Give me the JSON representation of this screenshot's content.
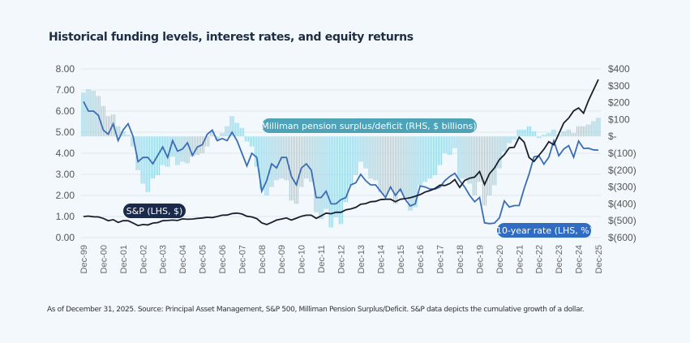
{
  "title": "Historical funding levels, interest rates, and equity returns",
  "footnote": "As of December 31, 2025. Source: Principal Asset Management, S&P 500, Milliman Pension Surplus/Deficit. S&P data depicts the cumulative growth of a dollar.",
  "colors": {
    "background": "#f2f8fb",
    "pension_bars": "#9dd4e4",
    "rate_line": "#3a6db5",
    "sp_line": "#1a1f2e",
    "pension_label": "#4ea3b9",
    "sp_label": "#1b2a4a",
    "rate_label": "#2f6cc2",
    "grid": "#dde8ee"
  },
  "chart_data": {
    "type": "bar+line",
    "title": "Historical funding levels, interest rates, and equity returns",
    "grid": true,
    "left_axis": {
      "ylim": [
        0,
        8
      ],
      "ticks": [
        "0.00",
        "1.00",
        "2.00",
        "3.00",
        "4.00",
        "5.00",
        "6.00",
        "7.00",
        "8.00"
      ]
    },
    "right_axis": {
      "ylim": [
        -600,
        400
      ],
      "ticks": [
        "$(600)",
        "$(500)",
        "$(400)",
        "$(300)",
        "$(200)",
        "$(100)",
        "$-",
        "$100",
        "$200",
        "$300",
        "$400"
      ]
    },
    "x_ticks": [
      "Dec-99",
      "Dec-00",
      "Dec-01",
      "Dec-02",
      "Dec-03",
      "Dec-04",
      "Dec-05",
      "Dec-06",
      "Dec-07",
      "Dec-08",
      "Dec-09",
      "Dec-10",
      "Dec-11",
      "Dec-12",
      "Dec-13",
      "Dec-14",
      "Dec-15",
      "Dec-16",
      "Dec-17",
      "Dec-18",
      "Dec-19",
      "Dec-20",
      "Dec-21",
      "Dec-22",
      "Dec-23",
      "Dec-24",
      "Dec-25"
    ],
    "x": [
      "1999-12",
      "2000-03",
      "2000-06",
      "2000-09",
      "2000-12",
      "2001-03",
      "2001-06",
      "2001-09",
      "2001-12",
      "2002-03",
      "2002-06",
      "2002-09",
      "2002-12",
      "2003-03",
      "2003-06",
      "2003-09",
      "2003-12",
      "2004-03",
      "2004-06",
      "2004-09",
      "2004-12",
      "2005-03",
      "2005-06",
      "2005-09",
      "2005-12",
      "2006-03",
      "2006-06",
      "2006-09",
      "2006-12",
      "2007-03",
      "2007-06",
      "2007-09",
      "2007-12",
      "2008-03",
      "2008-06",
      "2008-09",
      "2008-12",
      "2009-03",
      "2009-06",
      "2009-09",
      "2009-12",
      "2010-03",
      "2010-06",
      "2010-09",
      "2010-12",
      "2011-03",
      "2011-06",
      "2011-09",
      "2011-12",
      "2012-03",
      "2012-06",
      "2012-09",
      "2012-12",
      "2013-03",
      "2013-06",
      "2013-09",
      "2013-12",
      "2014-03",
      "2014-06",
      "2014-09",
      "2014-12",
      "2015-03",
      "2015-06",
      "2015-09",
      "2015-12",
      "2016-03",
      "2016-06",
      "2016-09",
      "2016-12",
      "2017-03",
      "2017-06",
      "2017-09",
      "2017-12",
      "2018-03",
      "2018-06",
      "2018-09",
      "2018-12",
      "2019-03",
      "2019-06",
      "2019-09",
      "2019-12",
      "2020-03",
      "2020-06",
      "2020-09",
      "2020-12",
      "2021-03",
      "2021-06",
      "2021-09",
      "2021-12",
      "2022-03",
      "2022-06",
      "2022-09",
      "2022-12",
      "2023-03",
      "2023-06",
      "2023-09",
      "2023-12",
      "2024-03",
      "2024-06",
      "2024-09",
      "2024-12",
      "2025-03",
      "2025-06",
      "2025-09",
      "2025-12"
    ],
    "series": [
      {
        "name": "Milliman pension surplus/deficit (RHS, $ billions)",
        "type": "bar",
        "axis": "right",
        "values": [
          260,
          280,
          270,
          240,
          180,
          120,
          130,
          60,
          30,
          10,
          -60,
          -200,
          -280,
          -330,
          -250,
          -230,
          -170,
          -180,
          -120,
          -170,
          -150,
          -160,
          -120,
          -110,
          -100,
          -60,
          30,
          -20,
          20,
          60,
          120,
          80,
          50,
          -30,
          -60,
          -180,
          -310,
          -350,
          -300,
          -260,
          -250,
          -260,
          -380,
          -400,
          -300,
          -250,
          -270,
          -450,
          -490,
          -430,
          -540,
          -480,
          -520,
          -390,
          -290,
          -230,
          -150,
          -190,
          -250,
          -260,
          -330,
          -350,
          -310,
          -400,
          -330,
          -360,
          -440,
          -420,
          -290,
          -270,
          -250,
          -230,
          -170,
          -100,
          -110,
          -70,
          -250,
          -250,
          -280,
          -350,
          -270,
          -410,
          -350,
          -290,
          -190,
          -90,
          -40,
          -20,
          40,
          40,
          60,
          30,
          -10,
          10,
          20,
          40,
          10,
          30,
          40,
          20,
          60,
          60,
          70,
          90,
          110
        ]
      },
      {
        "name": "10-year rate (LHS, %)",
        "type": "line",
        "axis": "left",
        "values": [
          6.45,
          6.0,
          6.0,
          5.8,
          5.1,
          4.9,
          5.4,
          4.6,
          5.1,
          5.4,
          4.8,
          3.6,
          3.8,
          3.8,
          3.5,
          3.9,
          4.3,
          3.8,
          4.6,
          4.1,
          4.2,
          4.5,
          3.9,
          4.3,
          4.4,
          4.9,
          5.1,
          4.6,
          4.7,
          4.6,
          5.0,
          4.6,
          4.0,
          3.4,
          4.0,
          3.8,
          2.2,
          2.7,
          3.5,
          3.3,
          3.8,
          3.8,
          2.9,
          2.5,
          3.3,
          3.5,
          3.2,
          1.9,
          1.9,
          2.2,
          1.6,
          1.6,
          1.8,
          1.9,
          2.5,
          2.6,
          3.0,
          2.7,
          2.5,
          2.5,
          2.2,
          1.9,
          2.4,
          2.0,
          2.3,
          1.8,
          1.5,
          1.6,
          2.45,
          2.4,
          2.3,
          2.3,
          2.4,
          2.7,
          2.9,
          3.05,
          2.7,
          2.4,
          2.0,
          1.7,
          1.9,
          0.7,
          0.66,
          0.69,
          0.93,
          1.74,
          1.45,
          1.52,
          1.52,
          2.32,
          3.01,
          3.83,
          3.88,
          3.48,
          3.81,
          4.59,
          3.88,
          4.2,
          4.36,
          3.81,
          4.58,
          4.23,
          4.24,
          4.16,
          4.15
        ]
      },
      {
        "name": "S&P (LHS, $)",
        "type": "line",
        "axis": "left",
        "values": [
          1.0,
          1.02,
          0.99,
          0.98,
          0.91,
          0.8,
          0.85,
          0.72,
          0.8,
          0.8,
          0.69,
          0.57,
          0.62,
          0.6,
          0.69,
          0.71,
          0.8,
          0.81,
          0.83,
          0.81,
          0.89,
          0.87,
          0.88,
          0.91,
          0.93,
          0.96,
          0.95,
          1.0,
          1.06,
          1.07,
          1.14,
          1.16,
          1.12,
          1.01,
          0.98,
          0.9,
          0.7,
          0.62,
          0.72,
          0.83,
          0.88,
          0.93,
          0.83,
          0.92,
          1.01,
          1.06,
          1.06,
          0.91,
          1.03,
          1.16,
          1.13,
          1.2,
          1.2,
          1.32,
          1.36,
          1.43,
          1.58,
          1.61,
          1.7,
          1.72,
          1.8,
          1.82,
          1.82,
          1.7,
          1.82,
          1.85,
          1.89,
          1.96,
          2.04,
          2.16,
          2.23,
          2.33,
          2.49,
          2.47,
          2.56,
          2.75,
          2.38,
          2.71,
          2.82,
          2.87,
          3.13,
          2.52,
          3.03,
          3.3,
          3.7,
          3.93,
          4.26,
          4.28,
          4.76,
          4.53,
          3.8,
          3.61,
          3.9,
          4.19,
          4.55,
          4.4,
          4.92,
          5.44,
          5.67,
          6.01,
          6.15,
          5.9,
          6.5,
          7.0,
          7.5
        ]
      }
    ]
  }
}
